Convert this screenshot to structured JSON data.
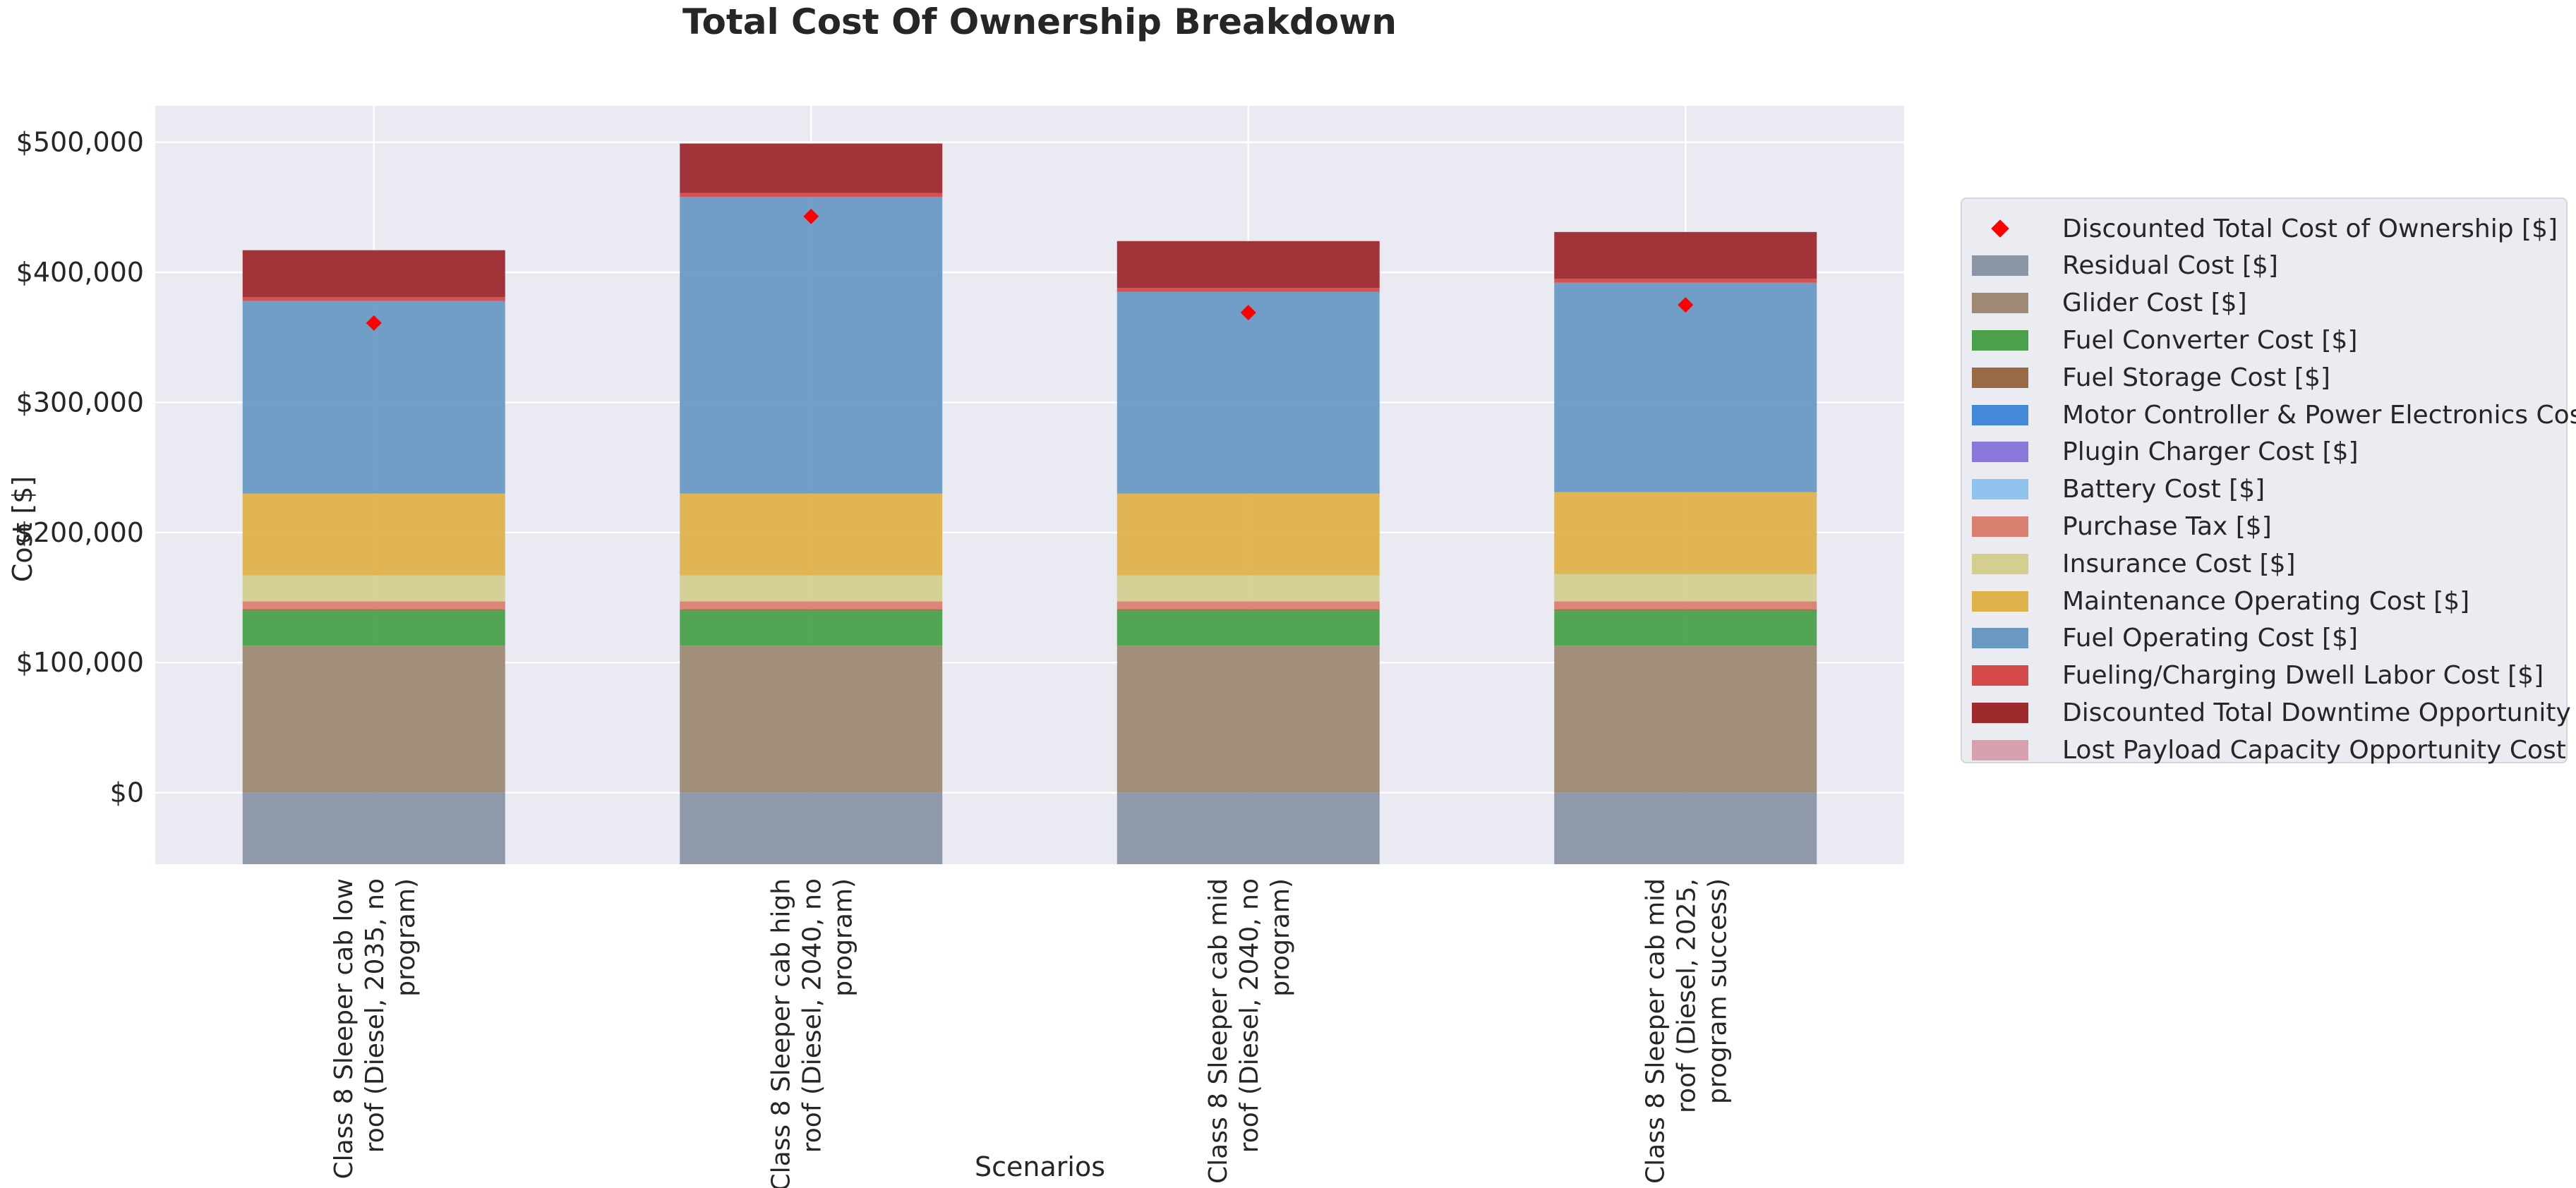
{
  "chart_data": {
    "type": "bar",
    "stacked": true,
    "title": "Total Cost Of Ownership Breakdown",
    "xlabel": "Scenarios",
    "ylabel": "Cost [$]",
    "ylim": [
      -55000,
      528000
    ],
    "yticks": [
      0,
      100000,
      200000,
      300000,
      400000,
      500000
    ],
    "ytick_labels": [
      "$0",
      "$100,000",
      "$200,000",
      "$300,000",
      "$400,000",
      "$500,000"
    ],
    "grid": true,
    "legend_position": "right",
    "categories": [
      "Class 8 Sleeper cab low roof (Diesel, 2035, no program)",
      "Class 8 Sleeper cab high roof (Diesel, 2040, no program)",
      "Class 8 Sleeper cab mid roof (Diesel, 2040, no program)",
      "Class 8 Sleeper cab mid roof (Diesel, 2025, program success)"
    ],
    "category_lines": [
      [
        "Class 8 Sleeper cab low",
        "roof (Diesel, 2035, no",
        "program)"
      ],
      [
        "Class 8 Sleeper cab high",
        "roof (Diesel, 2040, no",
        "program)"
      ],
      [
        "Class 8 Sleeper cab mid",
        "roof (Diesel, 2040, no",
        "program)"
      ],
      [
        "Class 8 Sleeper cab mid",
        "roof (Diesel, 2025,",
        "program success)"
      ]
    ],
    "series": [
      {
        "name": "Residual Cost [$]",
        "color": "#8a95a5",
        "values": [
          -55000,
          -55000,
          -55000,
          -55000
        ]
      },
      {
        "name": "Glider Cost [$]",
        "color": "#9e8a72",
        "values": [
          113000,
          113000,
          113000,
          113000
        ]
      },
      {
        "name": "Fuel Converter Cost  [$]",
        "color": "#4aa14a",
        "values": [
          27000,
          27000,
          27000,
          27000
        ]
      },
      {
        "name": "Fuel Storage Cost  [$]",
        "color": "#9a6a45",
        "values": [
          1000,
          1000,
          1000,
          1000
        ]
      },
      {
        "name": "Motor Controller & Power Electronics Cost  [$]",
        "color": "#4488d8",
        "values": [
          0,
          0,
          0,
          0
        ]
      },
      {
        "name": "Plugin Charger Cost  [$]",
        "color": "#8a79da",
        "values": [
          0,
          0,
          0,
          0
        ]
      },
      {
        "name": "Battery Cost  [$]",
        "color": "#90c4ee",
        "values": [
          0,
          0,
          0,
          0
        ]
      },
      {
        "name": "Purchase Tax  [$]",
        "color": "#d98070",
        "values": [
          6000,
          6000,
          6000,
          6000
        ]
      },
      {
        "name": "Insurance Cost [$]",
        "color": "#d4cf90",
        "values": [
          20000,
          20000,
          20000,
          21000
        ]
      },
      {
        "name": "Maintenance Operating Cost  [$]",
        "color": "#e0b24a",
        "values": [
          63000,
          63000,
          63000,
          63000
        ]
      },
      {
        "name": "Fuel Operating Cost  [$]",
        "color": "#6a9ac4",
        "values": [
          148000,
          228000,
          155000,
          161000
        ]
      },
      {
        "name": "Fueling/Charging Dwell Labor Cost [$]",
        "color": "#d44a4a",
        "values": [
          3000,
          3000,
          3000,
          3000
        ]
      },
      {
        "name": "Discounted Total Downtime Opportunity Cost [$]",
        "color": "#9e2a2e",
        "values": [
          36000,
          38000,
          36000,
          36000
        ]
      },
      {
        "name": "Lost Payload Capacity Opportunity Cost [$]",
        "color": "#d8a0ac",
        "values": [
          0,
          0,
          0,
          0
        ]
      }
    ],
    "markers": {
      "name": "Discounted Total Cost of Ownership [$]",
      "color": "#ff0000",
      "shape": "diamond",
      "values": [
        361000,
        443000,
        369000,
        375000
      ]
    }
  }
}
